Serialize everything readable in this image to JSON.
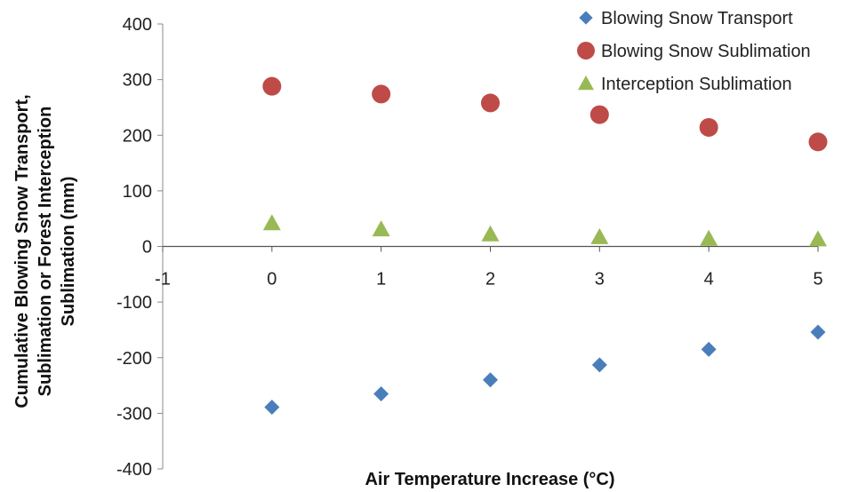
{
  "chart_data": {
    "type": "scatter",
    "title": "",
    "xlabel": "Air Temperature Increase (°C)",
    "ylabel_lines": [
      "Cumulative Blowing Snow Transport,",
      "Sublimation or Forest Interception",
      "Sublimation (mm)"
    ],
    "xlim": [
      -1,
      5
    ],
    "ylim": [
      -400,
      400
    ],
    "x_ticks": [
      -1,
      0,
      1,
      2,
      3,
      4,
      5
    ],
    "y_ticks": [
      400,
      300,
      200,
      100,
      0,
      -100,
      -200,
      -300,
      -400
    ],
    "x_tick_labels": [
      "-1",
      "0",
      "1",
      "2",
      "3",
      "4",
      "5"
    ],
    "y_tick_labels": [
      "400",
      "300",
      "200",
      "100",
      "0",
      "-100",
      "-200",
      "-300",
      "-400"
    ],
    "grid": false,
    "legend_position": "top-right",
    "series": [
      {
        "name": "Blowing Snow Transport",
        "marker": "diamond",
        "color": "#4a7ebb",
        "x": [
          0,
          1,
          2,
          3,
          4,
          5
        ],
        "y": [
          -289,
          -265,
          -240,
          -213,
          -185,
          -154
        ]
      },
      {
        "name": "Blowing Snow Sublimation",
        "marker": "circle",
        "color": "#be4b48",
        "x": [
          0,
          1,
          2,
          3,
          4,
          5
        ],
        "y": [
          288,
          274,
          258,
          237,
          214,
          188
        ]
      },
      {
        "name": "Interception Sublimation",
        "marker": "triangle",
        "color": "#98b954",
        "x": [
          0,
          1,
          2,
          3,
          4,
          5
        ],
        "y": [
          42,
          31,
          22,
          17,
          14,
          13
        ]
      }
    ]
  }
}
